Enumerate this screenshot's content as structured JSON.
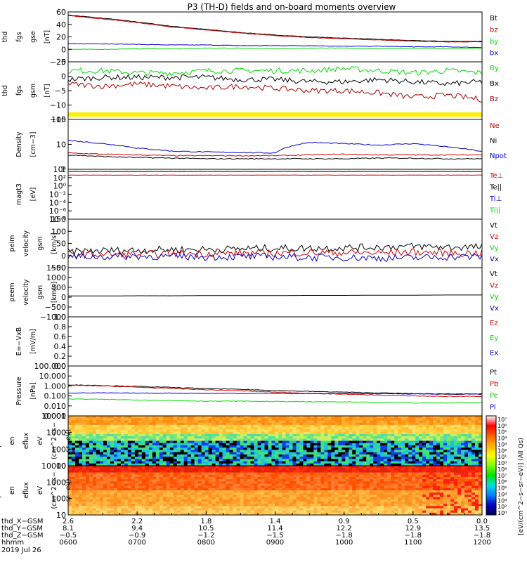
{
  "title": "P3 (TH-D) fields and on-board moments overview",
  "date_label": "2019 Jul 26",
  "colors": {
    "black": "#000000",
    "red": "#cc0000",
    "green": "#00dd00",
    "blue": "#0000cc",
    "yellow": "#ffee00",
    "darkred": "#aa0000"
  },
  "chart_data": [
    {
      "type": "line",
      "id": "fgs_gse",
      "ylabel": [
        "thd",
        "fgs",
        "gse",
        "[nT]"
      ],
      "ylim": [
        -20,
        60
      ],
      "yticks": [
        "60",
        "40",
        "20",
        "0",
        "−20"
      ],
      "legend": [
        {
          "name": "Bt",
          "color": "black"
        },
        {
          "name": "bz",
          "color": "red"
        },
        {
          "name": "by",
          "color": "green"
        },
        {
          "name": "bx",
          "color": "blue"
        }
      ],
      "series": [
        {
          "name": "Bt",
          "color": "black",
          "values": [
            55,
            50,
            44,
            37,
            32,
            27,
            23,
            20,
            18,
            16,
            14,
            13,
            13
          ]
        },
        {
          "name": "bz",
          "color": "red",
          "values": [
            54,
            49,
            43,
            36,
            31,
            26,
            22,
            19,
            17,
            15,
            13,
            12,
            12
          ]
        },
        {
          "name": "bx",
          "color": "blue",
          "values": [
            9,
            9,
            8,
            7,
            7,
            6,
            6,
            6,
            5,
            5,
            4,
            4,
            3
          ]
        },
        {
          "name": "by",
          "color": "green",
          "values": [
            0,
            0,
            1,
            1,
            2,
            2,
            1,
            2,
            2,
            1,
            2,
            1,
            2
          ]
        }
      ]
    },
    {
      "type": "line",
      "id": "fgs_gsm",
      "ylabel": [
        "thd",
        "fgs",
        "gsm",
        "[nT]"
      ],
      "ylim": [
        -18,
        8
      ],
      "yticks": [
        "5",
        "0",
        "−5",
        "−10",
        "−15"
      ],
      "legend": [
        {
          "name": "By",
          "color": "green"
        },
        {
          "name": "Bx",
          "color": "black"
        },
        {
          "name": "Bz",
          "color": "darkred"
        }
      ],
      "series": [
        {
          "name": "By",
          "color": "green",
          "values": [
            4,
            4,
            3,
            3,
            4,
            4,
            4,
            4,
            5,
            4,
            3,
            4,
            3
          ]
        },
        {
          "name": "Bx",
          "color": "black",
          "values": [
            0,
            1,
            1,
            1,
            1,
            0,
            0,
            -1,
            -1,
            0,
            -1,
            -2,
            -1
          ]
        },
        {
          "name": "Bz",
          "color": "darkred",
          "values": [
            -2,
            -3,
            -2,
            -3,
            -4,
            -3,
            -4,
            -5,
            -5,
            -6,
            -8,
            -7,
            -9
          ]
        }
      ]
    },
    {
      "type": "line",
      "id": "density",
      "ylabel": [
        "Density",
        "[cm−3]"
      ],
      "yscale": "log",
      "ylim": [
        0.1,
        200
      ],
      "yticks": [
        "100",
        "10",
        "1"
      ],
      "legend": [
        {
          "name": "Ne",
          "color": "red"
        },
        {
          "name": "Ni",
          "color": "black"
        },
        {
          "name": "Npot",
          "color": "blue"
        }
      ],
      "series": [
        {
          "name": "Npot",
          "color": "blue",
          "values": [
            8,
            5,
            2.5,
            1.6,
            1.4,
            1.3,
            1.2,
            6,
            5,
            4,
            5,
            3,
            1.5
          ]
        },
        {
          "name": "Ne",
          "color": "red",
          "values": [
            1.2,
            1.0,
            0.9,
            0.8,
            0.8,
            0.8,
            0.8,
            0.9,
            1.0,
            0.9,
            0.9,
            0.9,
            0.9
          ]
        },
        {
          "name": "Ni",
          "color": "black",
          "values": [
            0.9,
            0.7,
            0.6,
            0.55,
            0.5,
            0.5,
            0.5,
            0.5,
            0.5,
            0.55,
            0.55,
            0.5,
            0.5
          ]
        }
      ]
    },
    {
      "type": "line",
      "id": "temperature",
      "ylabel": [
        "magt3",
        "[eV]"
      ],
      "yscale": "log",
      "ylim": [
        1e-08,
        10000.0
      ],
      "yticks": [
        "10⁴",
        "10²",
        "10⁰",
        "10⁻²",
        "10⁻⁴",
        "10⁻⁶",
        "10⁻⁸"
      ],
      "legend": [
        {
          "name": "Te⊥",
          "color": "red"
        },
        {
          "name": "Te||",
          "color": "black"
        },
        {
          "name": "Ti⊥",
          "color": "blue"
        },
        {
          "name": "Ti||",
          "color": "green"
        }
      ],
      "series": [
        {
          "name": "Ti",
          "color": "black",
          "values": [
            3000,
            3000,
            3000,
            3000,
            3000,
            3000,
            3000,
            3000,
            3000,
            3000,
            3000,
            3000,
            3000
          ]
        },
        {
          "name": "Te",
          "color": "red",
          "values": [
            400,
            400,
            400,
            400,
            400,
            400,
            400,
            400,
            400,
            400,
            400,
            400,
            400
          ]
        }
      ]
    },
    {
      "type": "line",
      "id": "peim_velocity",
      "ylabel": [
        "thd",
        "peim",
        "velocity",
        "gsm",
        "[km/s]"
      ],
      "ylim": [
        -50,
        150
      ],
      "yticks": [
        "150",
        "100",
        "50",
        "0",
        "−50"
      ],
      "legend": [
        {
          "name": "Vt",
          "color": "black"
        },
        {
          "name": "Vz",
          "color": "red"
        },
        {
          "name": "Vy",
          "color": "green"
        },
        {
          "name": "Vx",
          "color": "blue"
        }
      ],
      "series": [
        {
          "name": "Vt",
          "color": "black",
          "values": [
            15,
            20,
            22,
            25,
            25,
            28,
            30,
            30,
            32,
            35,
            38,
            35,
            35
          ]
        },
        {
          "name": "Vz",
          "color": "red",
          "values": [
            5,
            5,
            5,
            8,
            8,
            10,
            10,
            12,
            12,
            10,
            15,
            10,
            10
          ]
        },
        {
          "name": "Vx",
          "color": "blue",
          "values": [
            -5,
            -5,
            -3,
            -5,
            -5,
            -5,
            -5,
            -8,
            -8,
            -10,
            -10,
            -5,
            -5
          ]
        }
      ]
    },
    {
      "type": "line",
      "id": "peem_velocity",
      "ylabel": [
        "thd",
        "peem",
        "velocity",
        "gsm",
        "[km/s]"
      ],
      "ylim": [
        -1000,
        1500
      ],
      "yticks": [
        "1500",
        "1000",
        "500",
        "0",
        "−500",
        "−1000"
      ],
      "legend": [
        {
          "name": "Vt",
          "color": "black"
        },
        {
          "name": "Vz",
          "color": "red"
        },
        {
          "name": "Vy",
          "color": "green"
        },
        {
          "name": "Vx",
          "color": "blue"
        }
      ],
      "series": [
        {
          "name": "Vt",
          "color": "black",
          "values": [
            60,
            60,
            70,
            70,
            80,
            80,
            80,
            90,
            90,
            100,
            100,
            110,
            110
          ]
        }
      ]
    },
    {
      "type": "line",
      "id": "efield",
      "ylabel": [
        "E=−VxB",
        "[mV/m]"
      ],
      "ylim": [
        0,
        1
      ],
      "yticks": [
        "1.0",
        "0.8",
        "0.6",
        "0.4",
        "0.2",
        "0.0"
      ],
      "legend": [
        {
          "name": "Ez",
          "color": "red"
        },
        {
          "name": "Ey",
          "color": "green"
        },
        {
          "name": "Ex",
          "color": "blue"
        }
      ],
      "series": []
    },
    {
      "type": "line",
      "id": "pressure",
      "ylabel": [
        "Pressure",
        "[nPa]"
      ],
      "yscale": "log",
      "ylim": [
        0.001,
        100
      ],
      "yticks": [
        "100.000",
        "10.000",
        "1.000",
        "0.100",
        "0.010",
        "0.001"
      ],
      "legend": [
        {
          "name": "Pt",
          "color": "black"
        },
        {
          "name": "Pb",
          "color": "red"
        },
        {
          "name": "Pe",
          "color": "green"
        },
        {
          "name": "Pi",
          "color": "blue"
        }
      ],
      "series": [
        {
          "name": "Pt",
          "color": "black",
          "values": [
            1.3,
            1.1,
            0.9,
            0.7,
            0.55,
            0.45,
            0.35,
            0.28,
            0.24,
            0.2,
            0.17,
            0.15,
            0.15
          ]
        },
        {
          "name": "Pb",
          "color": "red",
          "values": [
            1.2,
            1.0,
            0.75,
            0.55,
            0.42,
            0.32,
            0.24,
            0.18,
            0.15,
            0.12,
            0.1,
            0.09,
            0.09
          ]
        },
        {
          "name": "Pi",
          "color": "blue",
          "values": [
            0.2,
            0.2,
            0.19,
            0.19,
            0.18,
            0.18,
            0.18,
            0.17,
            0.17,
            0.17,
            0.16,
            0.16,
            0.16
          ]
        },
        {
          "name": "Pe",
          "color": "green",
          "values": [
            0.05,
            0.045,
            0.04,
            0.035,
            0.03,
            0.03,
            0.028,
            0.026,
            0.025,
            0.022,
            0.02,
            0.02,
            0.022
          ]
        }
      ]
    },
    {
      "type": "heatmap",
      "id": "peir",
      "ylabel": [
        "thd",
        "peir",
        "en",
        "eflux",
        "eV",
        "(cm^2−s−",
        "sr−eV)"
      ],
      "yscale": "log",
      "ylim": [
        5,
        20000
      ],
      "yticks": [
        "10000",
        "1000",
        "100",
        "10"
      ]
    },
    {
      "type": "heatmap",
      "id": "peer",
      "ylabel": [
        "thd",
        "peer",
        "en",
        "eflux",
        "eV",
        "(cm^2−s−",
        "sr−eV)"
      ],
      "yscale": "log",
      "ylim": [
        5,
        20000
      ],
      "yticks": [
        "10000",
        "1000",
        "100",
        "10"
      ]
    }
  ],
  "colorbar": {
    "label": "[eV/(cm^2−s−sr−eV)] (All Qs)",
    "ticks": [
      "10⁷",
      "10⁶",
      "10⁵",
      "10⁴",
      "10³",
      "10²",
      "10¹",
      "10⁰",
      "10⁸",
      "10⁷",
      "10⁶",
      "10⁵",
      "10⁴",
      "10³",
      "10²",
      "10⁰"
    ]
  },
  "xaxis": {
    "row_labels": [
      "thd_X−GSM",
      "thd_Y−GSM",
      "thd_Z−GSM",
      "hhmm"
    ],
    "rows": [
      [
        "2.6",
        "2.2",
        "1.8",
        "1.4",
        "0.9",
        "0.5",
        "0.0"
      ],
      [
        "8.1",
        "9.4",
        "10.5",
        "11.4",
        "12.2",
        "12.9",
        "13.5"
      ],
      [
        "−0.5",
        "−0.9",
        "−1.2",
        "−1.5",
        "−1.8",
        "−1.8",
        "−1.8"
      ],
      [
        "0600",
        "0700",
        "0800",
        "0900",
        "1000",
        "1100",
        "1200"
      ]
    ]
  }
}
